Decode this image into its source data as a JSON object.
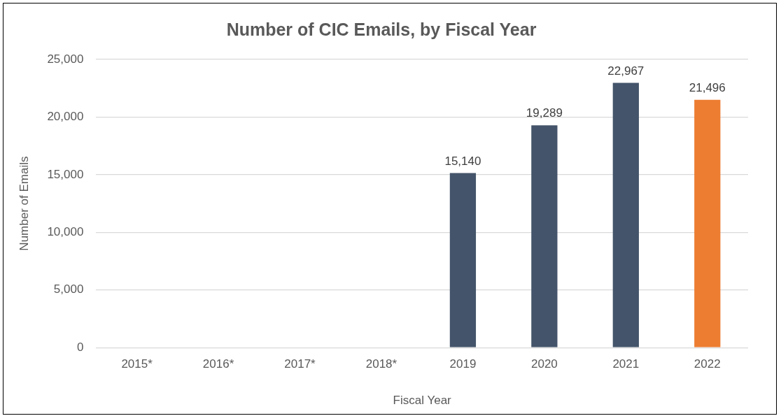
{
  "chart_data": {
    "type": "bar",
    "title": "Number of CIC Emails, by Fiscal Year",
    "xlabel": "Fiscal Year",
    "ylabel": "Number of Emails",
    "categories": [
      "2015*",
      "2016*",
      "2017*",
      "2018*",
      "2019",
      "2020",
      "2021",
      "2022"
    ],
    "values": [
      null,
      null,
      null,
      null,
      15140,
      19289,
      22967,
      21496
    ],
    "colors": [
      "#44546a",
      "#44546a",
      "#44546a",
      "#44546a",
      "#44546a",
      "#44546a",
      "#44546a",
      "#ed7d31"
    ],
    "value_labels": [
      null,
      null,
      null,
      null,
      "15,140",
      "19,289",
      "22,967",
      "21,496"
    ],
    "ylim": [
      0,
      25000
    ],
    "yticks": [
      {
        "value": 0,
        "label": "0"
      },
      {
        "value": 5000,
        "label": "5,000"
      },
      {
        "value": 10000,
        "label": "10,000"
      },
      {
        "value": 15000,
        "label": "15,000"
      },
      {
        "value": 20000,
        "label": "20,000"
      },
      {
        "value": 25000,
        "label": "25,000"
      }
    ],
    "grid": "y",
    "legend": false
  }
}
